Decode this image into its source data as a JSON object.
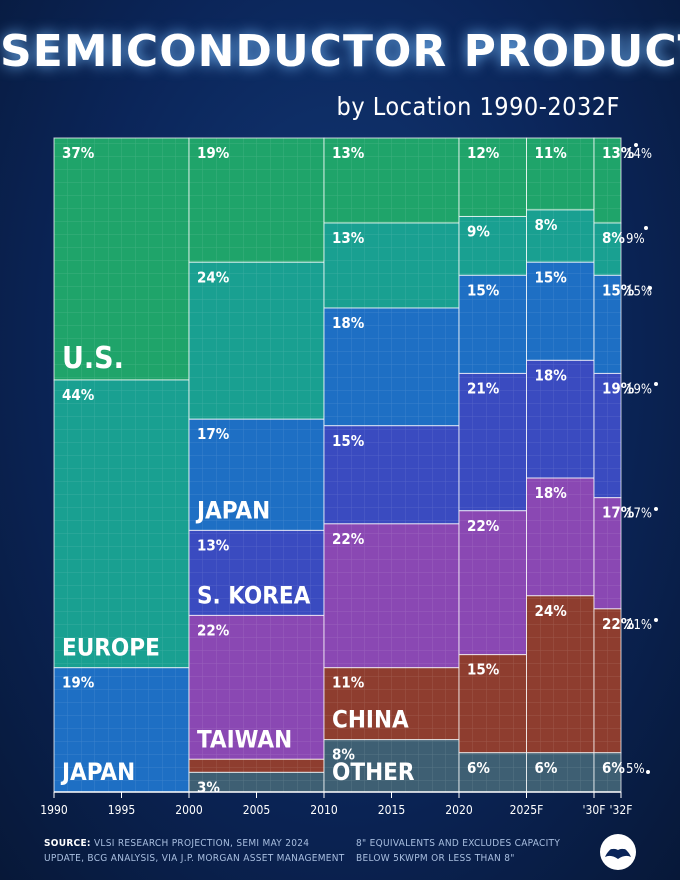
{
  "header": {
    "title": "SEMICONDUCTOR PRODUCTION",
    "subtitle": "by Location 1990-2032F"
  },
  "footer": {
    "source_label": "SOURCE:",
    "source_line1": "VLSI RESEARCH PROJECTION, SEMI MAY 2024",
    "source_line2": "UPDATE, BCG ANALYSIS, VIA J.P. MORGAN ASSET MANAGEMENT",
    "note_line1": "8\" EQUIVALENTS AND EXCLUDES CAPACITY",
    "note_line2": "BELOW 5KWPM OR LESS THAN 8\""
  },
  "colors": {
    "US": "#1fa46a",
    "Europe": "#19a091",
    "Japan": "#1e6fc4",
    "S. Korea": "#3a4bc0",
    "Taiwan": "#8a48b3",
    "China": "#8e3d2f",
    "Other": "#3e5f73"
  },
  "chart_data": {
    "type": "marimekko",
    "x_ticks": [
      "1990",
      "1995",
      "2000",
      "2005",
      "2010",
      "2015",
      "2020",
      "2025F",
      "'30F",
      "'32F"
    ],
    "periods": [
      "1990",
      "2000",
      "2010",
      "2020",
      "2025F",
      "2030F",
      "2032F"
    ],
    "period_span": [
      [
        1990,
        2000
      ],
      [
        2000,
        2010
      ],
      [
        2010,
        2020
      ],
      [
        2020,
        2025
      ],
      [
        2025,
        2030
      ],
      [
        2030,
        2032
      ]
    ],
    "series": [
      {
        "name": "U.S.",
        "key": "US",
        "values": [
          37,
          19,
          13,
          12,
          11,
          13
        ],
        "end": 14
      },
      {
        "name": "EUROPE",
        "key": "Europe",
        "values": [
          44,
          24,
          13,
          9,
          8,
          8
        ],
        "end": 9
      },
      {
        "name": "JAPAN",
        "key": "Japan",
        "values": [
          19,
          17,
          18,
          15,
          15,
          15
        ],
        "end": 15
      },
      {
        "name": "S. KOREA",
        "key": "S. Korea",
        "values": [
          0,
          13,
          15,
          21,
          18,
          19
        ],
        "end": 19
      },
      {
        "name": "TAIWAN",
        "key": "Taiwan",
        "values": [
          0,
          22,
          22,
          22,
          18,
          17
        ],
        "end": 17
      },
      {
        "name": "CHINA",
        "key": "China",
        "values": [
          0,
          2,
          11,
          15,
          24,
          22
        ],
        "end": 21
      },
      {
        "name": "OTHER",
        "key": "Other",
        "values": [
          0,
          3,
          8,
          6,
          6,
          6
        ],
        "end": 5
      }
    ],
    "region_labels": [
      {
        "text": "U.S.",
        "period": 0,
        "series": 0
      },
      {
        "text": "EUROPE",
        "period": 0,
        "series": 1
      },
      {
        "text": "JAPAN",
        "period": 0,
        "series": 2
      },
      {
        "text": "JAPAN",
        "period": 1,
        "series": 2
      },
      {
        "text": "S. KOREA",
        "period": 1,
        "series": 3
      },
      {
        "text": "TAIWAN",
        "period": 1,
        "series": 4
      },
      {
        "text": "CHINA",
        "period": 2,
        "series": 5
      },
      {
        "text": "OTHER",
        "period": 2,
        "series": 6
      }
    ],
    "ylim": [
      0,
      100
    ]
  }
}
